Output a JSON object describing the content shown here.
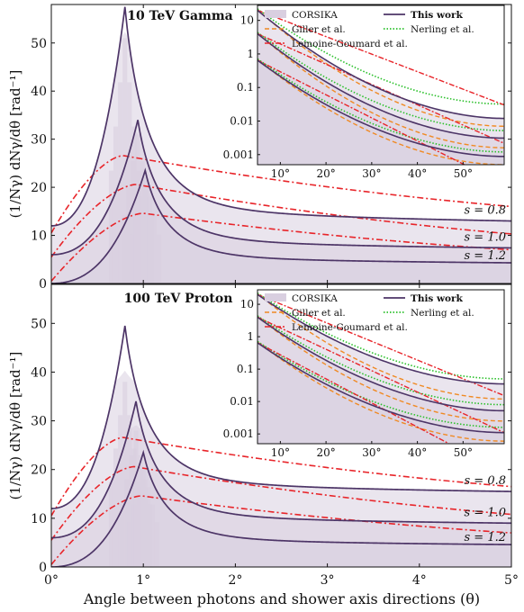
{
  "xlabel": "Angle between photons and shower axis directions (θ)",
  "ylabel": "(1/Nγ) dNγ/dθ [rad⁻¹]",
  "ylabel_parts": {
    "a": "(1/",
    "n": "N",
    "sub": "γ",
    "b": ") ",
    "frac": "dNγ/dθ",
    "unit": " [rad",
    "sup": "−1",
    "end": "]"
  },
  "colors": {
    "corsika_fill": "#d9cfe0",
    "corsika_dark": "#a696b4",
    "this_work": "#4d3567",
    "giller": "#f08a24",
    "nerling": "#2bc02b",
    "lemoine": "#e8252a"
  },
  "legend": {
    "corsika": "CORSIKA",
    "this_work": "This work",
    "giller": "Giller et al.",
    "nerling": "Nerling et al.",
    "lemoine": "Lemoine-Goumard et al."
  },
  "chart_data": [
    {
      "type": "line",
      "title": "10 TeV Gamma",
      "xlim": [
        0,
        5
      ],
      "ylim": [
        0,
        58
      ],
      "xticks": [
        {
          "v": 0,
          "label": "0°"
        },
        {
          "v": 1,
          "label": "1°"
        },
        {
          "v": 2,
          "label": "2°"
        },
        {
          "v": 3,
          "label": "3°"
        },
        {
          "v": 4,
          "label": "4°"
        },
        {
          "v": 5,
          "label": "5°"
        }
      ],
      "yticks": [
        {
          "v": 0,
          "label": "0"
        },
        {
          "v": 10,
          "label": "10"
        },
        {
          "v": 20,
          "label": "20"
        },
        {
          "v": 30,
          "label": "30"
        },
        {
          "v": 40,
          "label": "40"
        },
        {
          "v": 50,
          "label": "50"
        }
      ],
      "series": [
        {
          "age": 0.8,
          "label": "s = 0.8",
          "peak_x": 0.8,
          "peak_y": 57.5,
          "y0": 12.0,
          "y5": 13.0,
          "lem_peak": 26.6,
          "lem_y0": 10.5,
          "lem_y5": 16.0,
          "hist_peak": 51.0
        },
        {
          "age": 1.0,
          "label": "s = 1.0",
          "peak_x": 0.94,
          "peak_y": 34.0,
          "y0": 6.0,
          "y5": 7.4,
          "lem_peak": 20.6,
          "lem_y0": 5.5,
          "lem_y5": 10.3,
          "hist_peak": 31.0
        },
        {
          "age": 1.2,
          "label": "s = 1.2",
          "peak_x": 1.02,
          "peak_y": 23.5,
          "y0": 0.0,
          "y5": 4.3,
          "lem_peak": 14.6,
          "lem_y0": 0.5,
          "lem_y5": 7.0,
          "hist_peak": 22.0
        }
      ],
      "inset": {
        "xlim": [
          5,
          59
        ],
        "ylim_log": [
          0.0005,
          28
        ],
        "xticks": [
          {
            "v": 10,
            "label": "10°"
          },
          {
            "v": 20,
            "label": "20°"
          },
          {
            "v": 30,
            "label": "30°"
          },
          {
            "v": 40,
            "label": "40°"
          },
          {
            "v": 50,
            "label": "50°"
          }
        ],
        "yticks": [
          {
            "v": 10,
            "label": "10"
          },
          {
            "v": 1,
            "label": "1"
          },
          {
            "v": 0.1,
            "label": "0.1"
          },
          {
            "v": 0.01,
            "label": "0.01"
          },
          {
            "v": 0.001,
            "label": "0.001"
          }
        ],
        "curves": [
          {
            "y5": 20.0,
            "y59": 0.012,
            "lem_slope": 0.095,
            "giller_y59": 0.007,
            "nerling_y59": 0.032
          },
          {
            "y5": 4.0,
            "y59": 0.0031,
            "lem_slope": 0.11,
            "giller_y59": 0.0016,
            "nerling_y59": 0.0052
          },
          {
            "y5": 0.65,
            "y59": 0.00088,
            "lem_slope": 0.125,
            "giller_y59": 0.0005,
            "nerling_y59": 0.0012
          }
        ]
      }
    },
    {
      "type": "line",
      "title": "100 TeV Proton",
      "xlim": [
        0,
        5
      ],
      "ylim": [
        0,
        58
      ],
      "xticks": [
        {
          "v": 0,
          "label": "0°"
        },
        {
          "v": 1,
          "label": "1°"
        },
        {
          "v": 2,
          "label": "2°"
        },
        {
          "v": 3,
          "label": "3°"
        },
        {
          "v": 4,
          "label": "4°"
        },
        {
          "v": 5,
          "label": "5°"
        }
      ],
      "yticks": [
        {
          "v": 0,
          "label": "0"
        },
        {
          "v": 10,
          "label": "10"
        },
        {
          "v": 20,
          "label": "20"
        },
        {
          "v": 30,
          "label": "30"
        },
        {
          "v": 40,
          "label": "40"
        },
        {
          "v": 50,
          "label": "50"
        }
      ],
      "series": [
        {
          "age": 0.8,
          "label": "s = 0.8",
          "peak_x": 0.8,
          "peak_y": 49.5,
          "y0": 12.0,
          "y5": 15.5,
          "lem_peak": 26.6,
          "lem_y0": 10.5,
          "lem_y5": 16.5,
          "hist_peak": 38.0
        },
        {
          "age": 1.0,
          "label": "s = 1.0",
          "peak_x": 0.92,
          "peak_y": 34.0,
          "y0": 6.0,
          "y5": 9.0,
          "lem_peak": 20.6,
          "lem_y0": 5.5,
          "lem_y5": 10.8,
          "hist_peak": 28.0
        },
        {
          "age": 1.2,
          "label": "s = 1.2",
          "peak_x": 1.0,
          "peak_y": 23.5,
          "y0": 0.0,
          "y5": 4.6,
          "lem_peak": 14.6,
          "lem_y0": 0.5,
          "lem_y5": 7.0,
          "hist_peak": 20.0
        }
      ],
      "inset": {
        "xlim": [
          5,
          59
        ],
        "ylim_log": [
          0.0005,
          28
        ],
        "xticks": [
          {
            "v": 10,
            "label": "10°"
          },
          {
            "v": 20,
            "label": "20°"
          },
          {
            "v": 30,
            "label": "30°"
          },
          {
            "v": 40,
            "label": "40°"
          },
          {
            "v": 50,
            "label": "50°"
          }
        ],
        "yticks": [
          {
            "v": 10,
            "label": "10"
          },
          {
            "v": 1,
            "label": "1"
          },
          {
            "v": 0.1,
            "label": "0.1"
          },
          {
            "v": 0.01,
            "label": "0.01"
          },
          {
            "v": 0.001,
            "label": "0.001"
          }
        ],
        "curves": [
          {
            "y5": 20.0,
            "y59": 0.035,
            "lem_slope": 0.105,
            "giller_y59": 0.012,
            "nerling_y59": 0.05
          },
          {
            "y5": 4.0,
            "y59": 0.0052,
            "lem_slope": 0.12,
            "giller_y59": 0.0025,
            "nerling_y59": 0.008
          },
          {
            "y5": 0.65,
            "y59": 0.0011,
            "lem_slope": 0.135,
            "giller_y59": 0.0006,
            "nerling_y59": 0.0016
          }
        ]
      }
    }
  ]
}
